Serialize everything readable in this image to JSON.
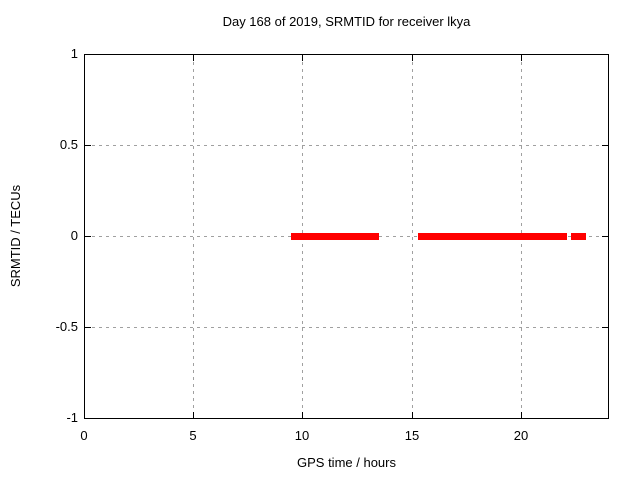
{
  "chart_data": {
    "type": "scatter",
    "title": "Day 168 of 2019, SRMTID for receiver lkya",
    "xlabel": "GPS time / hours",
    "ylabel": "SRMTID / TECUs",
    "xlim": [
      0,
      24
    ],
    "ylim": [
      -1,
      1
    ],
    "xticks": [
      0,
      5,
      10,
      15,
      20
    ],
    "xtick_labels": [
      "0",
      "5",
      "10",
      "15",
      "20"
    ],
    "yticks": [
      -1,
      -0.5,
      0,
      0.5,
      1
    ],
    "ytick_labels": [
      "-1",
      "-0.5",
      "0",
      "0.5",
      "1"
    ],
    "grid": "dashed",
    "grid_color": "#a0a0a0",
    "background_color": "#ffffff",
    "border_color": "#000000",
    "legend": "none",
    "series": [
      {
        "name": "SRMTID",
        "color": "#ff0000",
        "marker_style": "thick-horizontal-band",
        "segments": [
          {
            "x_start": 9.5,
            "x_end": 13.5,
            "y": 0
          },
          {
            "x_start": 15.3,
            "x_end": 22.1,
            "y": 0
          },
          {
            "x_start": 22.3,
            "x_end": 23.0,
            "y": 0
          }
        ]
      }
    ]
  }
}
